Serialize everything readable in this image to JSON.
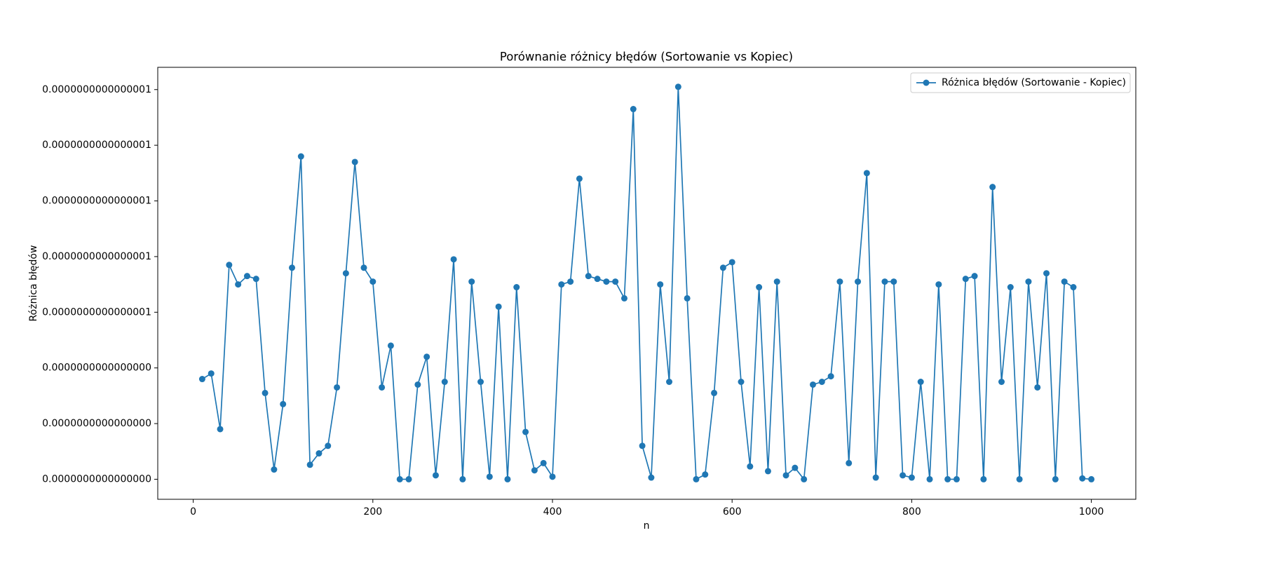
{
  "chart_data": {
    "type": "line",
    "title": "Porównanie różnicy błędów (Sortowanie vs Kopiec)",
    "xlabel": "n",
    "ylabel": "Różnica błędów",
    "x": [
      10,
      20,
      30,
      40,
      50,
      60,
      70,
      80,
      90,
      100,
      110,
      120,
      130,
      140,
      150,
      160,
      170,
      180,
      190,
      200,
      210,
      220,
      230,
      240,
      250,
      260,
      270,
      280,
      290,
      300,
      310,
      320,
      330,
      340,
      350,
      360,
      370,
      380,
      390,
      400,
      410,
      420,
      430,
      440,
      450,
      460,
      470,
      480,
      490,
      500,
      510,
      520,
      530,
      540,
      550,
      560,
      570,
      580,
      590,
      600,
      610,
      620,
      630,
      640,
      650,
      660,
      670,
      680,
      690,
      700,
      710,
      720,
      730,
      740,
      750,
      760,
      770,
      780,
      790,
      800,
      810,
      820,
      830,
      840,
      850,
      860,
      870,
      880,
      890,
      900,
      910,
      920,
      930,
      940,
      950,
      960,
      970,
      980,
      990,
      1000
    ],
    "series": [
      {
        "name": "Różnica błędów (Sortowanie - Kopiec)",
        "color": "#1f77b4",
        "values": [
          3.6e-17,
          3.8e-17,
          1.8e-17,
          7.7e-17,
          7e-17,
          7.3e-17,
          7.2e-17,
          3.1e-17,
          3.5e-18,
          2.7e-17,
          7.6e-17,
          1.16e-16,
          5.2e-18,
          9.3e-18,
          1.2e-17,
          3.3e-17,
          7.4e-17,
          1.14e-16,
          7.6e-17,
          7.1e-17,
          3.3e-17,
          4.8e-17,
          0,
          0,
          3.4e-17,
          4.4e-17,
          1.4e-18,
          3.5e-17,
          7.9e-17,
          0,
          7.1e-17,
          3.5e-17,
          9e-19,
          6.2e-17,
          0,
          6.9e-17,
          1.7e-17,
          3.2e-18,
          5.8e-18,
          9e-19,
          7e-17,
          7.1e-17,
          1.08e-16,
          7.3e-17,
          7.2e-17,
          7.1e-17,
          7.1e-17,
          6.5e-17,
          1.33e-16,
          1.2e-17,
          6e-19,
          7e-17,
          3.5e-17,
          1.41e-16,
          6.5e-17,
          0,
          1.7e-18,
          3.1e-17,
          7.6e-17,
          7.8e-17,
          3.5e-17,
          4.6e-18,
          6.9e-17,
          2.9e-18,
          7.1e-17,
          1.4e-18,
          4.1e-18,
          0,
          3.4e-17,
          3.5e-17,
          3.7e-17,
          7.1e-17,
          5.8e-18,
          7.1e-17,
          1.1e-16,
          6e-19,
          7.1e-17,
          7.1e-17,
          1.4e-18,
          6e-19,
          3.5e-17,
          0,
          7e-17,
          0,
          0,
          7.2e-17,
          7.3e-17,
          0,
          1.05e-16,
          3.5e-17,
          6.9e-17,
          0,
          7.1e-17,
          3.3e-17,
          7.4e-17,
          0,
          7.1e-17,
          6.9e-17,
          3e-19,
          0
        ]
      }
    ],
    "xlim": [
      -39.5,
      1049.5
    ],
    "xticks": [
      0,
      200,
      400,
      600,
      800,
      1000
    ],
    "ylim": [
      -7.2e-18,
      1.48e-16
    ],
    "yticks": [
      {
        "value": 0,
        "label": "0.0000000000000000"
      },
      {
        "value": 2e-17,
        "label": "0.0000000000000000"
      },
      {
        "value": 4e-17,
        "label": "0.0000000000000000"
      },
      {
        "value": 6e-17,
        "label": "0.0000000000000001"
      },
      {
        "value": 8e-17,
        "label": "0.0000000000000001"
      },
      {
        "value": 1e-16,
        "label": "0.0000000000000001"
      },
      {
        "value": 1.2e-16,
        "label": "0.0000000000000001"
      },
      {
        "value": 1.4e-16,
        "label": "0.0000000000000001"
      }
    ],
    "legend": "upper right",
    "grid": false
  }
}
